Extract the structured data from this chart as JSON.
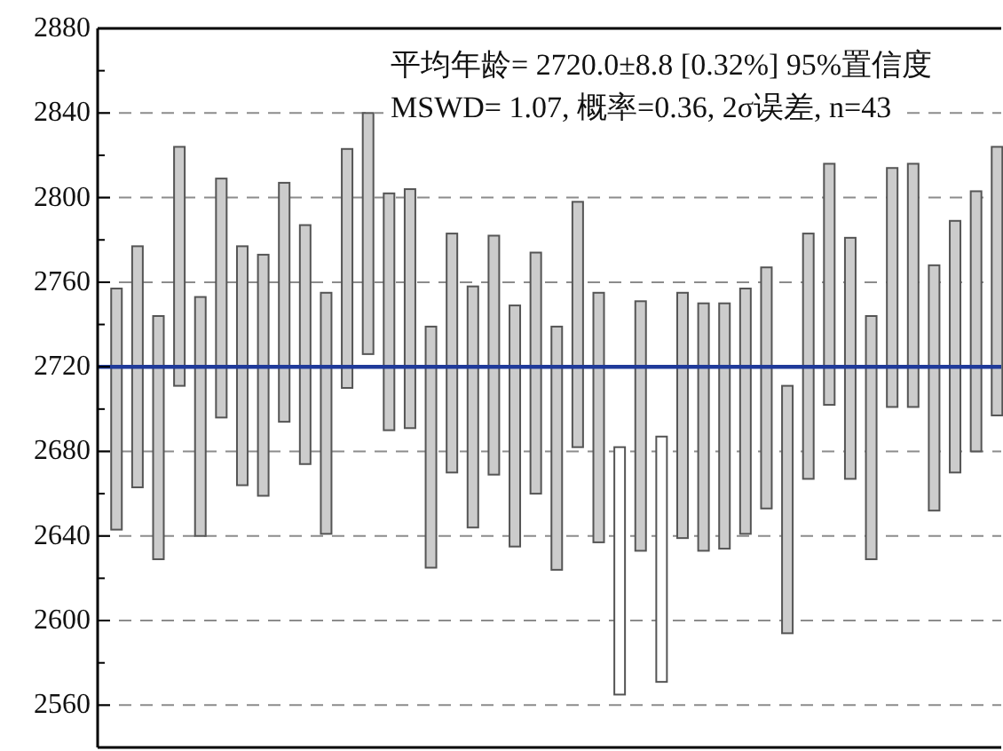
{
  "chart_data": {
    "type": "bar",
    "categories": [
      null,
      null,
      null,
      null,
      null,
      null,
      null,
      null,
      null,
      null,
      null,
      null,
      null,
      null,
      null,
      null,
      null,
      null,
      null,
      null,
      null,
      null,
      null,
      null,
      null,
      null,
      null,
      null,
      null,
      null,
      null,
      null,
      null,
      null,
      null,
      null,
      null,
      null,
      null,
      null,
      null,
      null,
      null
    ],
    "base": [
      2643,
      2663,
      2629,
      2711,
      2640,
      2696,
      2664,
      2659,
      2694,
      2674,
      2641,
      2710,
      2726,
      2690,
      2691,
      2625,
      2670,
      2644,
      2669,
      2635,
      2660,
      2624,
      2682,
      2637,
      2565,
      2633,
      2571,
      2639,
      2633,
      2634,
      2641,
      2653,
      2594,
      2667,
      2702,
      2667,
      2629,
      2701,
      2701,
      2652,
      2670,
      2680,
      2697
    ],
    "values": [
      114,
      114,
      115,
      113,
      113,
      113,
      113,
      114,
      113,
      113,
      114,
      113,
      114,
      112,
      113,
      114,
      113,
      114,
      113,
      114,
      114,
      115,
      116,
      118,
      117,
      118,
      116,
      116,
      117,
      116,
      116,
      114,
      117,
      116,
      114,
      114,
      115,
      113,
      115,
      116,
      119,
      123,
      127
    ],
    "colors": [
      "#cccccc",
      "#cccccc",
      "#cccccc",
      "#cccccc",
      "#cccccc",
      "#cccccc",
      "#cccccc",
      "#cccccc",
      "#cccccc",
      "#cccccc",
      "#cccccc",
      "#cccccc",
      "#cccccc",
      "#cccccc",
      "#cccccc",
      "#cccccc",
      "#cccccc",
      "#cccccc",
      "#cccccc",
      "#cccccc",
      "#cccccc",
      "#cccccc",
      "#cccccc",
      "#cccccc",
      "#ffffff",
      "#cccccc",
      "#ffffff",
      "#cccccc",
      "#cccccc",
      "#cccccc",
      "#cccccc",
      "#cccccc",
      "#cccccc",
      "#cccccc",
      "#cccccc",
      "#cccccc",
      "#cccccc",
      "#cccccc",
      "#cccccc",
      "#cccccc",
      "#cccccc",
      "#cccccc",
      "#cccccc"
    ],
    "ylim": [
      2540,
      2880
    ],
    "yticks": [
      2560,
      {
        "value": 2580,
        "label": null
      },
      2600,
      {
        "value": 2620,
        "label": null
      },
      2640,
      {
        "value": 2660,
        "label": null
      },
      2680,
      {
        "value": 2700,
        "label": null
      },
      2720,
      {
        "value": 2740,
        "label": null
      },
      2760,
      {
        "value": 2780,
        "label": null
      },
      2800,
      {
        "value": 2820,
        "label": null
      },
      2840,
      {
        "value": 2860,
        "label": null
      },
      2880
    ],
    "grid": "y",
    "tick_labels": "y",
    "ref_lines": [
      {
        "axis": "y",
        "value": 2720,
        "color": "#1f3a9a"
      }
    ],
    "annotations": [
      "平均年龄= 2720.0±8.8  [0.32%]  95%置信度",
      "MSWD= 1.07, 概率=0.36, 2σ误差, n=43"
    ]
  }
}
